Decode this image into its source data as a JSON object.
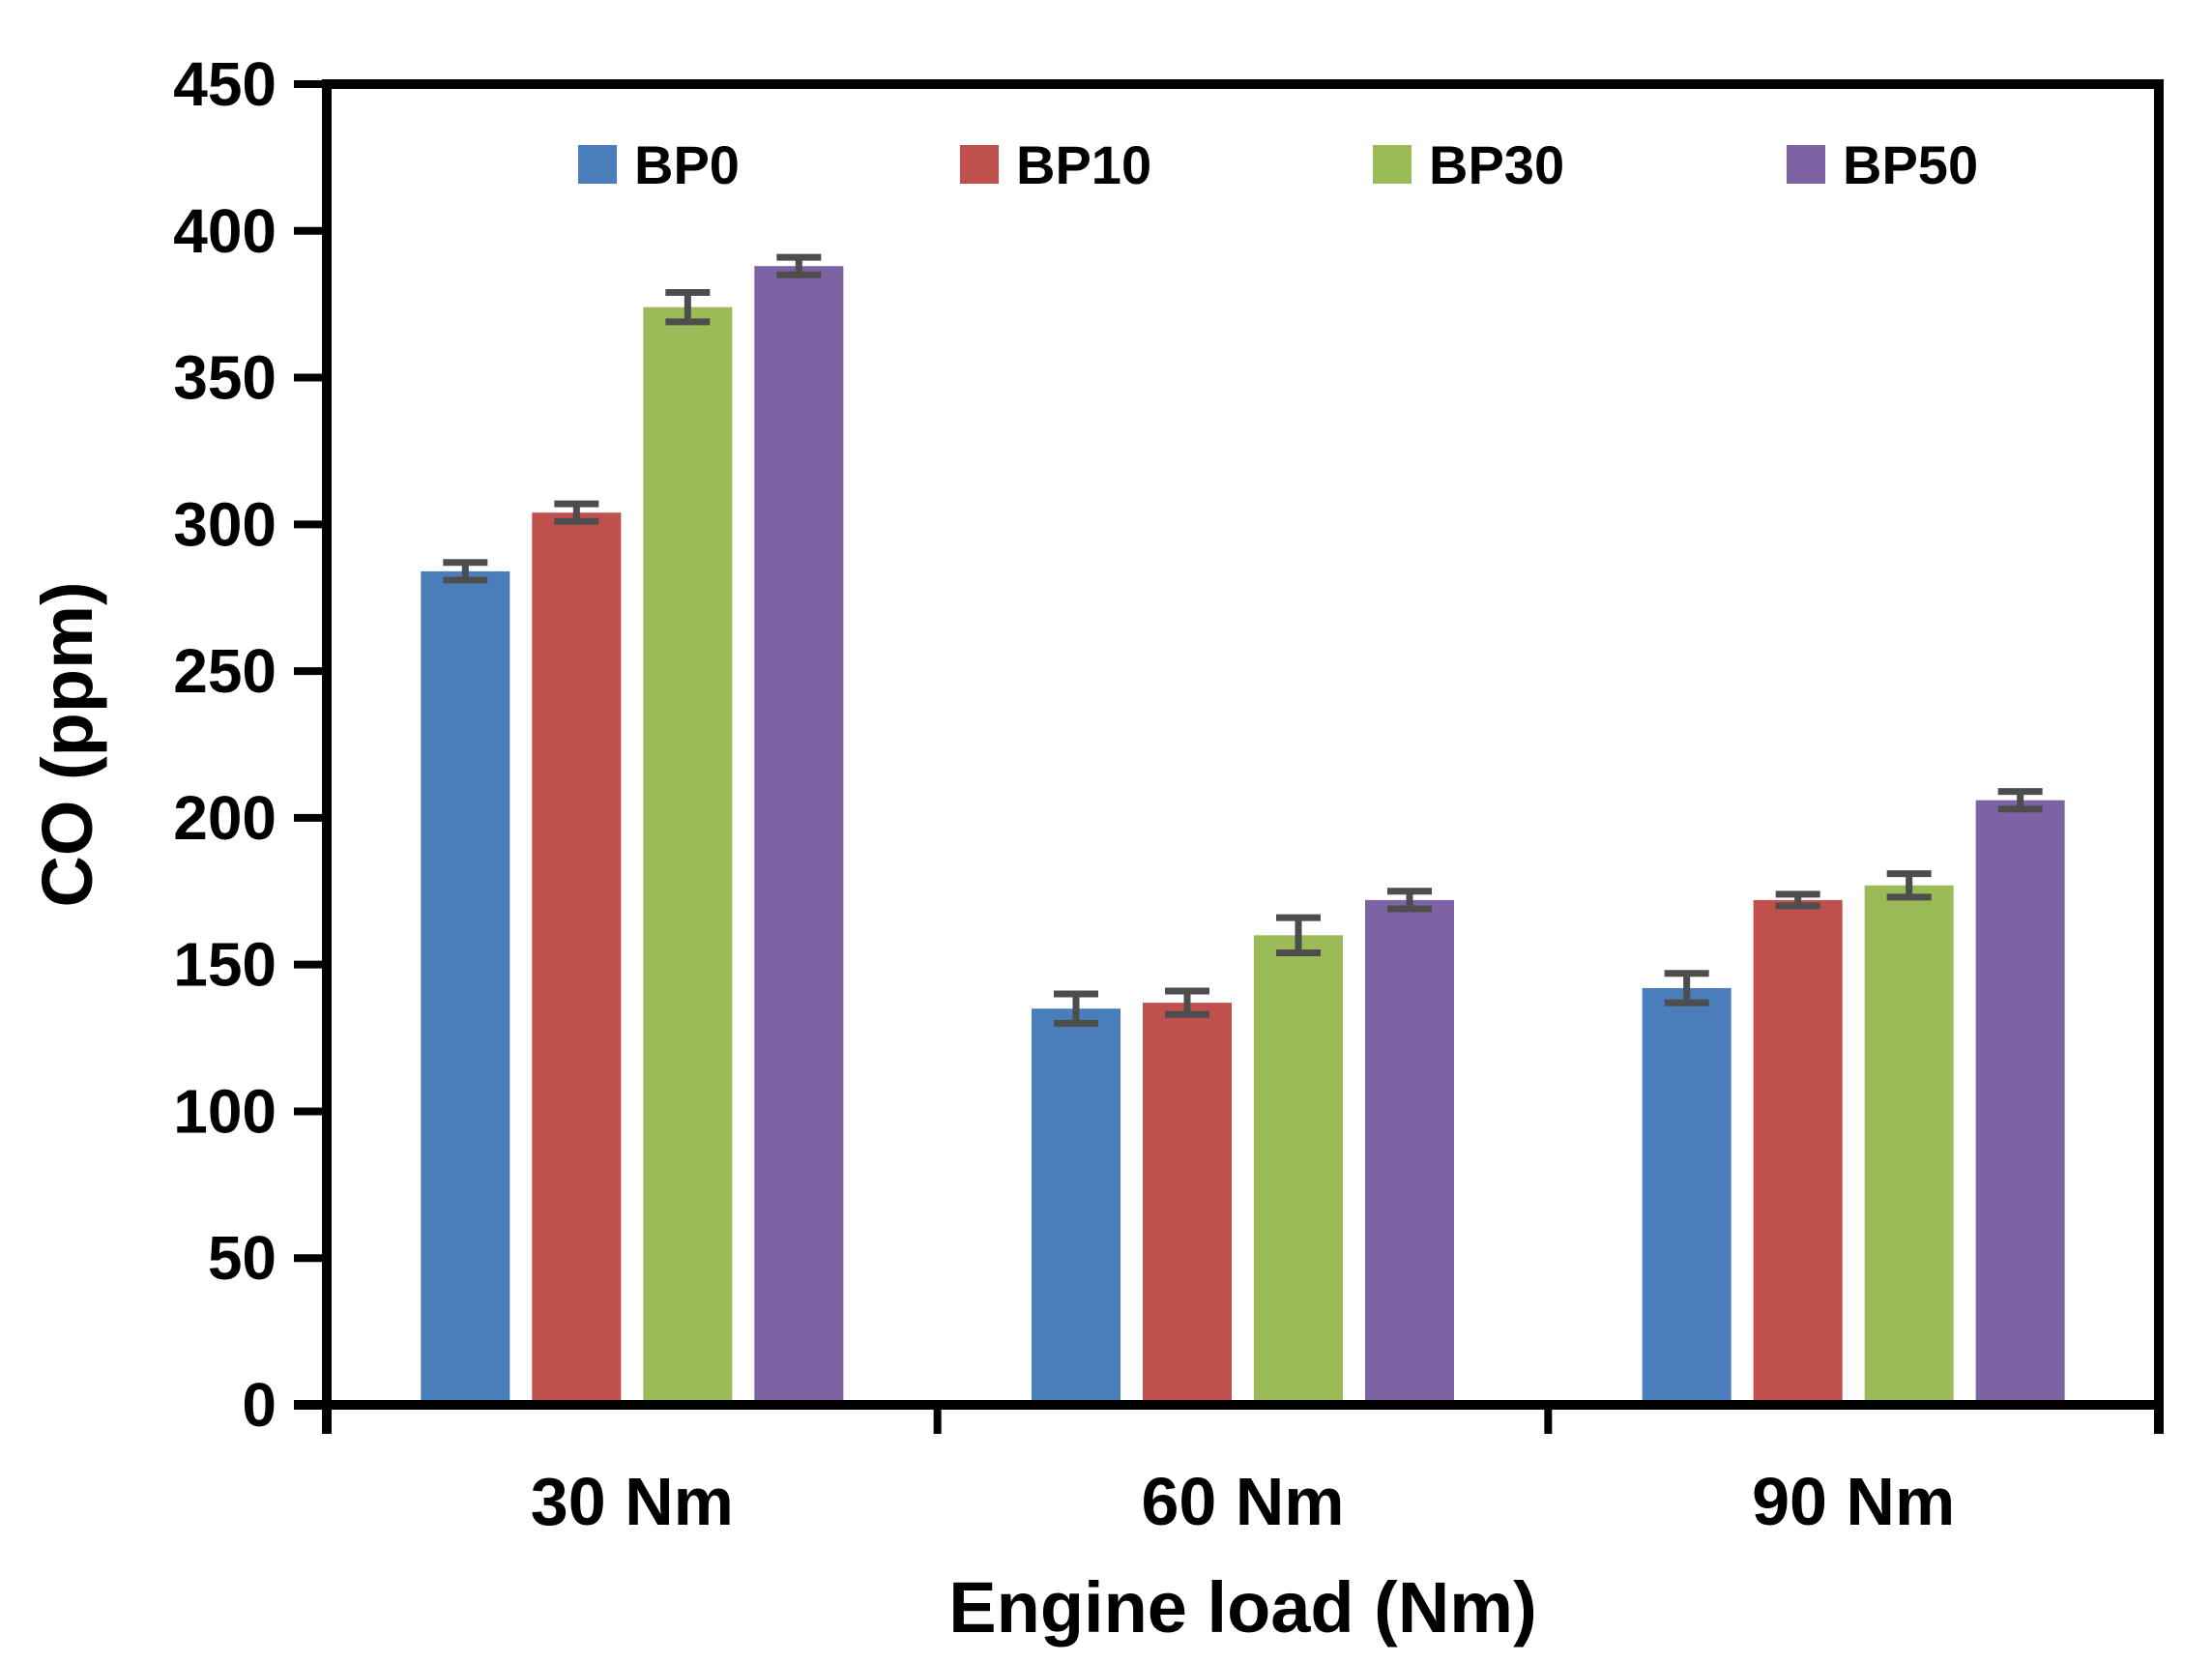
{
  "chart_data": {
    "type": "bar",
    "title": "",
    "categories": [
      "30 Nm",
      "60 Nm",
      "90 Nm"
    ],
    "series": [
      {
        "name": "BP0",
        "color": "#4a7ebb",
        "values": [
          284,
          135,
          142
        ],
        "errors": [
          3,
          5,
          5
        ]
      },
      {
        "name": "BP10",
        "color": "#c0504d",
        "values": [
          304,
          137,
          172
        ],
        "errors": [
          3,
          4,
          2
        ]
      },
      {
        "name": "BP30",
        "color": "#9bbb59",
        "values": [
          374,
          160,
          177
        ],
        "errors": [
          5,
          6,
          4
        ]
      },
      {
        "name": "BP50",
        "color": "#7e63a4",
        "values": [
          388,
          172,
          206
        ],
        "errors": [
          3,
          3,
          3
        ]
      }
    ],
    "xlabel": "Engine load (Nm)",
    "ylabel": "CO (ppm)",
    "ylim": [
      0,
      450
    ],
    "ytick_step": 50,
    "ytick_labels": [
      "0",
      "50",
      "100",
      "150",
      "200",
      "250",
      "300",
      "350",
      "400",
      "450"
    ],
    "grid": false,
    "legend_position": "top-inside",
    "legend_labels": [
      "BP0",
      "BP10",
      "BP30",
      "BP50"
    ],
    "error_bar_color": "#4d4d4d",
    "axis_color": "#000000"
  }
}
